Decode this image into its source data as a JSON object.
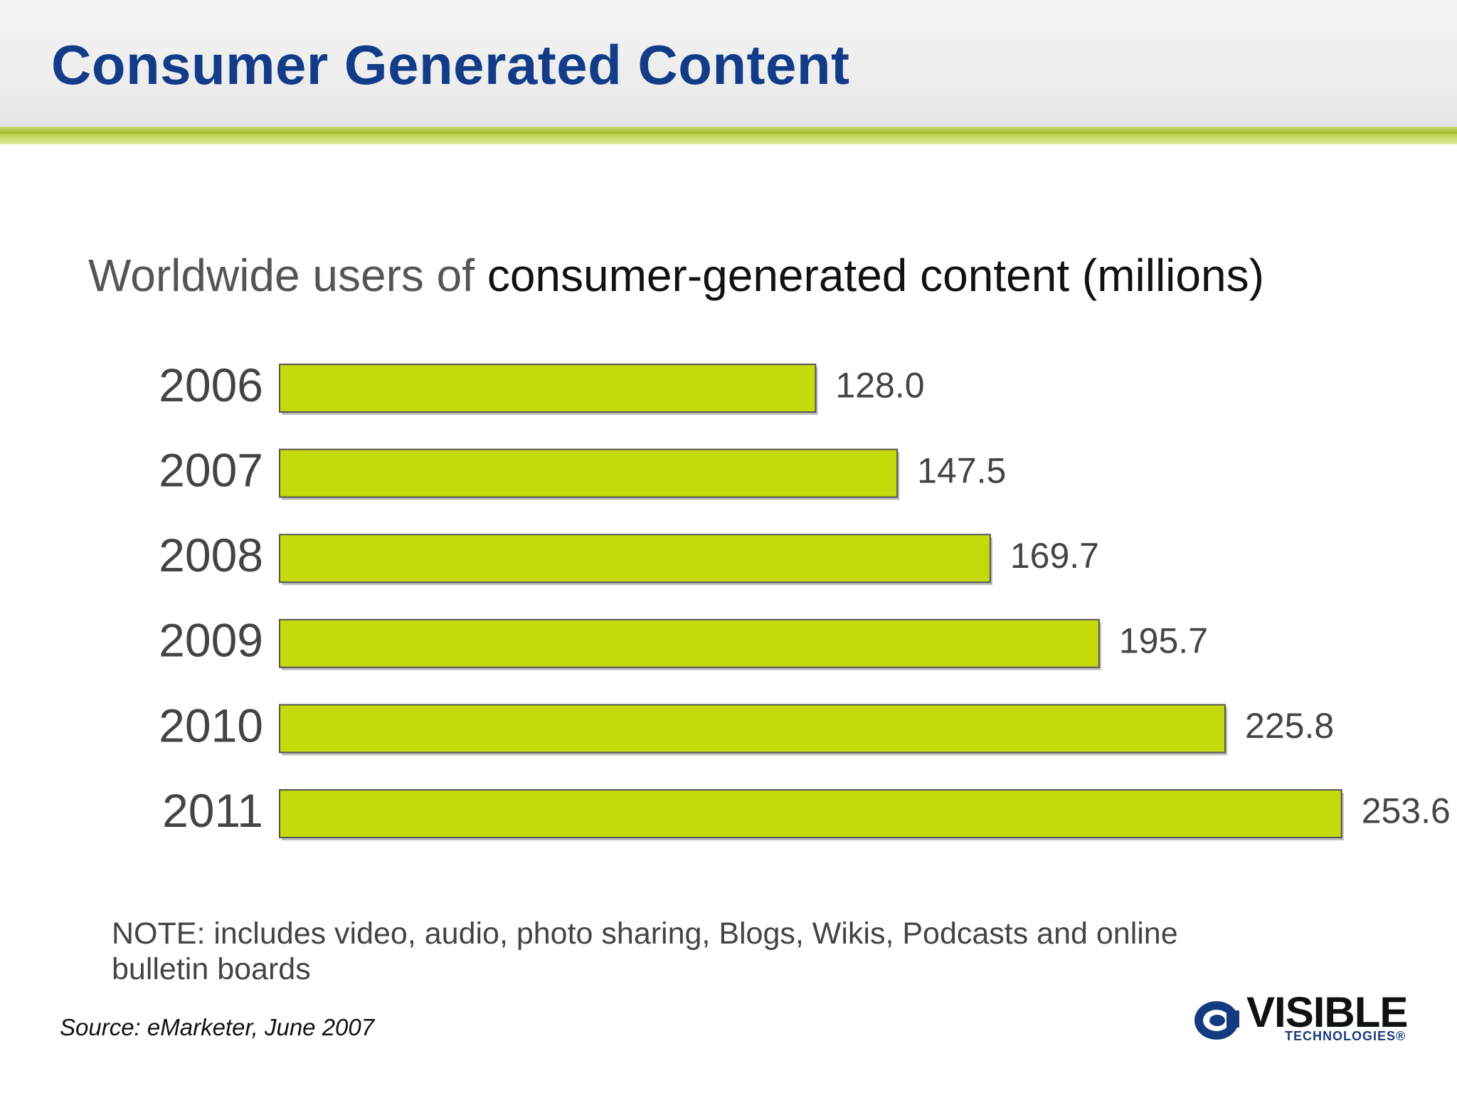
{
  "slide": {
    "title": "Consumer Generated Content",
    "subtitle_light": "Worldwide users of",
    "subtitle_strong": "consumer-generated content (millions)",
    "note_line1": "NOTE: includes video, audio, photo sharing, Blogs, Wikis, Podcasts and online",
    "note_line2": "bulletin boards",
    "source": "Source: eMarketer, June 2007"
  },
  "logo": {
    "word": "VISIBLE",
    "tagline": "TECHNOLOGIES®"
  },
  "colors": {
    "title": "#133c88",
    "bar_fill": "#c5da0a",
    "bar_stroke": "#555555",
    "accent_rule": "#a8c236"
  },
  "chart_data": {
    "type": "bar",
    "orientation": "horizontal",
    "title": "Worldwide users of consumer-generated content (millions)",
    "categories": [
      "2006",
      "2007",
      "2008",
      "2009",
      "2010",
      "2011"
    ],
    "values": [
      128.0,
      147.5,
      169.7,
      195.7,
      225.8,
      253.6
    ],
    "value_labels": [
      "128.0",
      "147.5",
      "169.7",
      "195.7",
      "225.8",
      "253.6"
    ],
    "xlabel": "",
    "ylabel": "",
    "grid": false
  }
}
